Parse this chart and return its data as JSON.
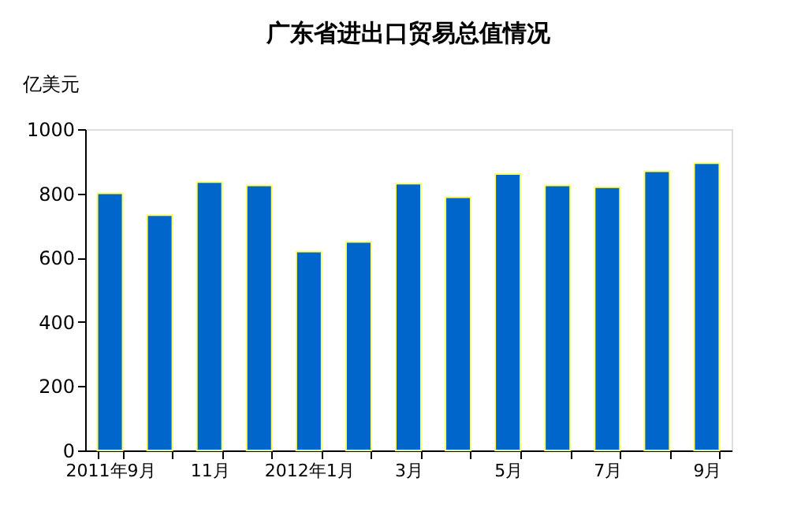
{
  "chart_data": {
    "type": "bar",
    "title": "广东省进出口贸易总值情况",
    "ylabel": "亿美元",
    "categories": [
      "2011年9月",
      null,
      "11月",
      null,
      "2012年1月",
      null,
      "3月",
      null,
      "5月",
      null,
      "7月",
      null,
      "9月"
    ],
    "values": [
      800,
      732,
      835,
      825,
      619,
      649,
      830,
      788,
      860,
      825,
      819,
      869,
      894
    ],
    "color": "#0066cc",
    "ylim": [
      0,
      1000
    ],
    "yticks": [
      0,
      200,
      400,
      600,
      800,
      1000
    ],
    "grid": false
  }
}
